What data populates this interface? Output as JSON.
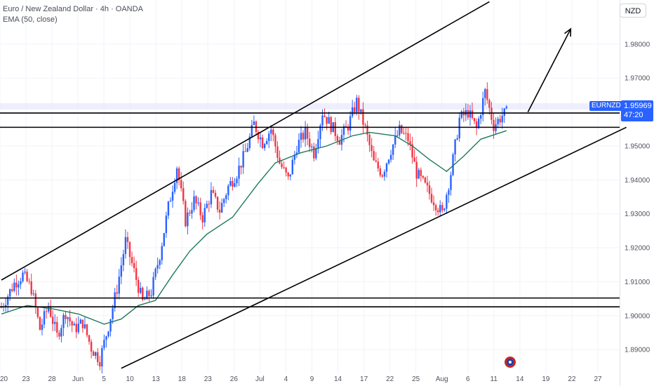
{
  "header": {
    "title": "Euro / New Zealand Dollar · 4h · OANDA",
    "indicator": "EMA (50, close)"
  },
  "currency_button": "NZD",
  "last_price": {
    "symbol": "EURNZD",
    "value": "1.95969",
    "countdown": "47:20"
  },
  "colors": {
    "up": "#2962ff",
    "down": "#f23645",
    "ema": "#1f7a5c",
    "lines": "#000000",
    "grid": "#f0f3fa",
    "price_tag": "#2962ff"
  },
  "chart_data": {
    "type": "candlestick",
    "symbol": "EURNZD",
    "timeframe": "4h",
    "y_ticks": [
      1.98,
      1.97,
      1.96,
      1.95,
      1.94,
      1.93,
      1.92,
      1.91,
      1.9,
      1.89
    ],
    "x_ticks": [
      "20",
      "23",
      "28",
      "Jun",
      "5",
      "10",
      "13",
      "18",
      "23",
      "26",
      "Jul",
      "4",
      "9",
      "14",
      "17",
      "22",
      "25",
      "Aug",
      "6",
      "11",
      "14",
      "19",
      "22",
      "27"
    ],
    "ylim": [
      1.883,
      1.993
    ],
    "price_path": [
      {
        "t": 0,
        "p": 1.9025
      },
      {
        "t": 3,
        "p": 1.9095
      },
      {
        "t": 5,
        "p": 1.912
      },
      {
        "t": 7,
        "p": 1.908
      },
      {
        "t": 9,
        "p": 1.896
      },
      {
        "t": 11,
        "p": 1.903
      },
      {
        "t": 13,
        "p": 1.894
      },
      {
        "t": 15,
        "p": 1.901
      },
      {
        "t": 17,
        "p": 1.896
      },
      {
        "t": 19,
        "p": 1.898
      },
      {
        "t": 21,
        "p": 1.8905
      },
      {
        "t": 23,
        "p": 1.887
      },
      {
        "t": 25,
        "p": 1.897
      },
      {
        "t": 27,
        "p": 1.908
      },
      {
        "t": 29,
        "p": 1.922
      },
      {
        "t": 31,
        "p": 1.913
      },
      {
        "t": 33,
        "p": 1.904
      },
      {
        "t": 35,
        "p": 1.907
      },
      {
        "t": 37,
        "p": 1.918
      },
      {
        "t": 39,
        "p": 1.932
      },
      {
        "t": 41,
        "p": 1.944
      },
      {
        "t": 43,
        "p": 1.928
      },
      {
        "t": 45,
        "p": 1.934
      },
      {
        "t": 47,
        "p": 1.929
      },
      {
        "t": 49,
        "p": 1.936
      },
      {
        "t": 51,
        "p": 1.931
      },
      {
        "t": 53,
        "p": 1.938
      },
      {
        "t": 55,
        "p": 1.942
      },
      {
        "t": 57,
        "p": 1.948
      },
      {
        "t": 59,
        "p": 1.9565
      },
      {
        "t": 61,
        "p": 1.951
      },
      {
        "t": 63,
        "p": 1.955
      },
      {
        "t": 65,
        "p": 1.945
      },
      {
        "t": 67,
        "p": 1.94
      },
      {
        "t": 69,
        "p": 1.95
      },
      {
        "t": 71,
        "p": 1.954
      },
      {
        "t": 73,
        "p": 1.948
      },
      {
        "t": 75,
        "p": 1.96
      },
      {
        "t": 77,
        "p": 1.956
      },
      {
        "t": 79,
        "p": 1.952
      },
      {
        "t": 81,
        "p": 1.956
      },
      {
        "t": 83,
        "p": 1.963
      },
      {
        "t": 85,
        "p": 1.955
      },
      {
        "t": 87,
        "p": 1.945
      },
      {
        "t": 89,
        "p": 1.942
      },
      {
        "t": 91,
        "p": 1.949
      },
      {
        "t": 93,
        "p": 1.9545
      },
      {
        "t": 95,
        "p": 1.952
      },
      {
        "t": 97,
        "p": 1.942
      },
      {
        "t": 99,
        "p": 1.938
      },
      {
        "t": 101,
        "p": 1.934
      },
      {
        "t": 103,
        "p": 1.93
      },
      {
        "t": 105,
        "p": 1.942
      },
      {
        "t": 107,
        "p": 1.958
      },
      {
        "t": 109,
        "p": 1.96
      },
      {
        "t": 111,
        "p": 1.955
      },
      {
        "t": 113,
        "p": 1.966
      },
      {
        "t": 115,
        "p": 1.956
      },
      {
        "t": 117,
        "p": 1.959
      },
      {
        "t": 118,
        "p": 1.9597
      }
    ],
    "ema_path": [
      {
        "t": 0,
        "p": 1.9005
      },
      {
        "t": 6,
        "p": 1.903
      },
      {
        "t": 12,
        "p": 1.902
      },
      {
        "t": 18,
        "p": 1.9005
      },
      {
        "t": 24,
        "p": 1.8975
      },
      {
        "t": 28,
        "p": 1.899
      },
      {
        "t": 32,
        "p": 1.903
      },
      {
        "t": 36,
        "p": 1.9045
      },
      {
        "t": 40,
        "p": 1.912
      },
      {
        "t": 44,
        "p": 1.919
      },
      {
        "t": 48,
        "p": 1.924
      },
      {
        "t": 54,
        "p": 1.929
      },
      {
        "t": 60,
        "p": 1.939
      },
      {
        "t": 64,
        "p": 1.945
      },
      {
        "t": 70,
        "p": 1.948
      },
      {
        "t": 76,
        "p": 1.95
      },
      {
        "t": 82,
        "p": 1.953
      },
      {
        "t": 86,
        "p": 1.954
      },
      {
        "t": 92,
        "p": 1.953
      },
      {
        "t": 96,
        "p": 1.95
      },
      {
        "t": 100,
        "p": 1.946
      },
      {
        "t": 104,
        "p": 1.9425
      },
      {
        "t": 108,
        "p": 1.947
      },
      {
        "t": 112,
        "p": 1.952
      },
      {
        "t": 118,
        "p": 1.9545
      }
    ],
    "horizontal_lines": [
      1.9597,
      1.9555,
      1.9052,
      1.9026
    ],
    "channel": {
      "upper": [
        {
          "t": 0,
          "p": 1.9105
        },
        {
          "t": 114,
          "p": 1.9925
        }
      ],
      "lower": [
        {
          "t": 28,
          "p": 1.8845
        },
        {
          "t": 146,
          "p": 1.9555
        }
      ]
    },
    "projection_arrow": {
      "from": {
        "t": 123,
        "p": 1.96
      },
      "to": {
        "t": 133,
        "p": 1.9845
      }
    }
  }
}
